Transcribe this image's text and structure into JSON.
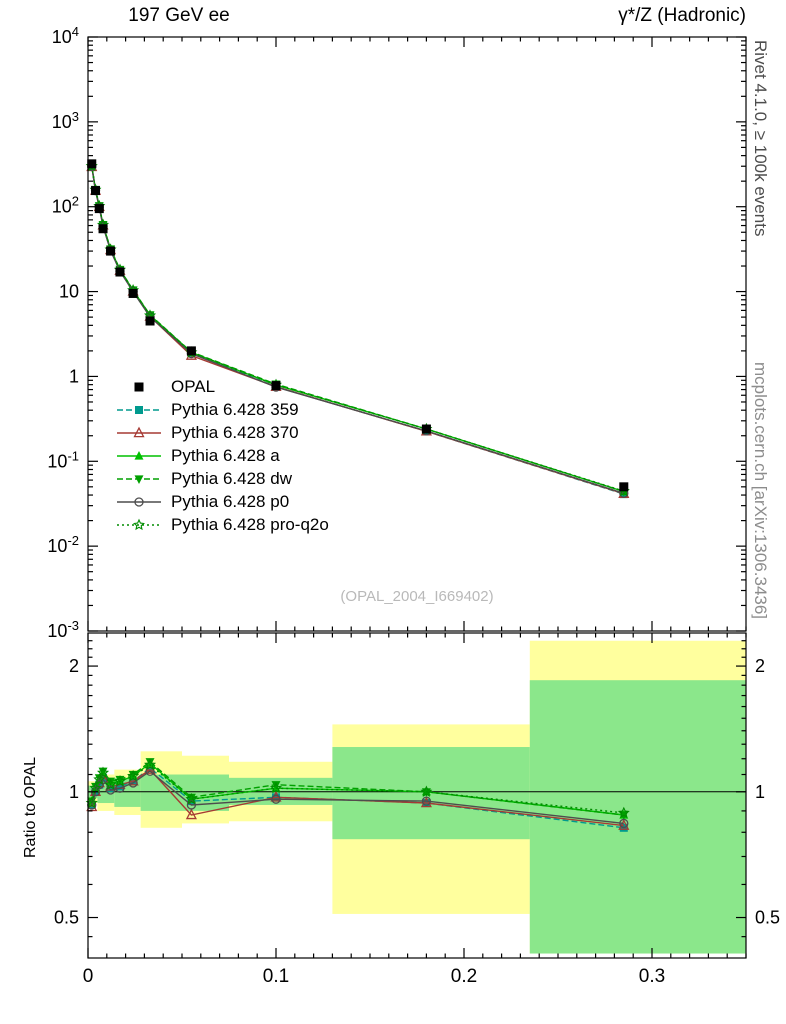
{
  "header": {
    "left_title": "197 GeV ee",
    "right_title": "γ*/Z (Hadronic)"
  },
  "side_labels": {
    "rivet": "Rivet 4.1.0, ≥ 100k events",
    "mcplots": "mcplots.cern.ch [arXiv:1306.3436]"
  },
  "watermark": "(OPAL_2004_I669402)",
  "chart_data": {
    "type": "line",
    "title": "197 GeV ee",
    "subtitle": "γ*/Z (Hadronic)",
    "x": [
      0.002,
      0.004,
      0.006,
      0.008,
      0.012,
      0.017,
      0.024,
      0.033,
      0.055,
      0.1,
      0.18,
      0.285
    ],
    "xaxis": {
      "min": 0,
      "max": 0.35,
      "major_ticks": [
        0,
        0.1,
        0.2,
        0.3
      ],
      "minor_step": 0.01
    },
    "main_panel": {
      "yscale": "log",
      "ymin": 0.001,
      "ymax": 10000,
      "ytick_exponents": [
        4,
        3,
        2,
        1,
        0,
        -1,
        -2,
        -3
      ]
    },
    "ratio_panel": {
      "yscale": "log",
      "ymin": 0.4,
      "ymax": 2.4,
      "yticks": [
        0.5,
        1,
        2
      ],
      "ylabel": "Ratio to OPAL",
      "unity": 1
    },
    "data_series": {
      "name": "OPAL",
      "color": "#000000",
      "marker": "square-filled",
      "values": [
        320,
        155,
        95,
        55,
        30,
        17,
        9.5,
        4.5,
        2.0,
        0.78,
        0.24,
        0.05
      ]
    },
    "mc_series": [
      {
        "name": "Pythia 6.428 359",
        "color": "#009a8e",
        "line": "dash",
        "marker": "square-filled",
        "ratio": [
          0.93,
          1.0,
          1.04,
          1.08,
          1.02,
          1.03,
          1.06,
          1.14,
          0.95,
          0.97,
          0.94,
          0.82
        ]
      },
      {
        "name": "Pythia 6.428 370",
        "color": "#a63a34",
        "line": "solid",
        "marker": "triangle-up-open",
        "ratio": [
          0.92,
          1.0,
          1.05,
          1.1,
          1.03,
          1.04,
          1.06,
          1.13,
          0.88,
          0.97,
          0.94,
          0.83
        ]
      },
      {
        "name": "Pythia 6.428 a",
        "color": "#00c000",
        "line": "solid",
        "marker": "triangle-up-filled",
        "ratio": [
          0.95,
          1.02,
          1.07,
          1.11,
          1.05,
          1.06,
          1.09,
          1.17,
          0.96,
          1.02,
          1.0,
          0.88
        ]
      },
      {
        "name": "Pythia 6.428 dw",
        "color": "#00a000",
        "line": "dash",
        "marker": "triangle-down-filled",
        "ratio": [
          0.95,
          1.03,
          1.08,
          1.12,
          1.06,
          1.07,
          1.1,
          1.18,
          0.97,
          1.04,
          1.0,
          0.88
        ]
      },
      {
        "name": "Pythia 6.428 p0",
        "color": "#4d4d4d",
        "line": "solid",
        "marker": "circle-open",
        "ratio": [
          0.93,
          1.0,
          1.04,
          1.07,
          1.01,
          1.02,
          1.05,
          1.12,
          0.93,
          0.96,
          0.95,
          0.84
        ]
      },
      {
        "name": "Pythia 6.428 pro-q2o",
        "color": "#008c00",
        "line": "dot",
        "marker": "star-open",
        "ratio": [
          0.94,
          1.02,
          1.07,
          1.11,
          1.04,
          1.06,
          1.09,
          1.16,
          0.96,
          1.02,
          1.0,
          0.89
        ]
      }
    ],
    "bands": {
      "yellow_color": "#ffff9e",
      "green_color": "#8be78b",
      "yellow": [
        [
          0.0,
          0.005,
          0.94,
          1.06
        ],
        [
          0.005,
          0.014,
          0.9,
          1.1
        ],
        [
          0.014,
          0.028,
          0.88,
          1.13
        ],
        [
          0.028,
          0.05,
          0.82,
          1.25
        ],
        [
          0.05,
          0.075,
          0.84,
          1.22
        ],
        [
          0.075,
          0.13,
          0.85,
          1.18
        ],
        [
          0.13,
          0.235,
          0.51,
          1.45
        ],
        [
          0.235,
          0.35,
          0.41,
          2.3
        ]
      ],
      "green": [
        [
          0.0,
          0.005,
          0.965,
          1.035
        ],
        [
          0.005,
          0.014,
          0.94,
          1.06
        ],
        [
          0.014,
          0.028,
          0.92,
          1.08
        ],
        [
          0.028,
          0.05,
          0.9,
          1.1
        ],
        [
          0.05,
          0.075,
          0.9,
          1.1
        ],
        [
          0.075,
          0.13,
          0.93,
          1.08
        ],
        [
          0.13,
          0.235,
          0.77,
          1.28
        ],
        [
          0.235,
          0.35,
          0.41,
          1.85
        ]
      ]
    }
  }
}
